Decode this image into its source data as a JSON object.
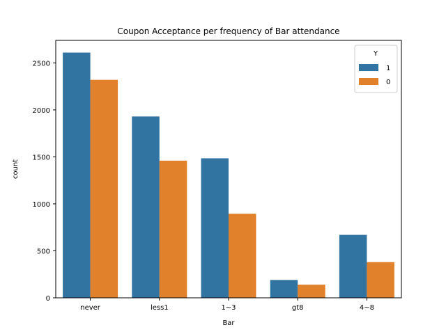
{
  "chart_data": {
    "type": "bar",
    "title": "Coupon Acceptance per frequency of Bar attendance",
    "xlabel": "Bar",
    "ylabel": "count",
    "categories": [
      "never",
      "less1",
      "1~3",
      "gt8",
      "4~8"
    ],
    "series": [
      {
        "name": "1",
        "color": "#3274a1",
        "values": [
          2610,
          1930,
          1485,
          190,
          670
        ]
      },
      {
        "name": "0",
        "color": "#e1812c",
        "values": [
          2320,
          1460,
          895,
          140,
          380
        ]
      }
    ],
    "ylim": [
      0,
      2740
    ],
    "yticks": [
      0,
      500,
      1000,
      1500,
      2000,
      2500
    ],
    "legend": {
      "title": "Y",
      "placement": "top-right"
    },
    "grid": false
  }
}
